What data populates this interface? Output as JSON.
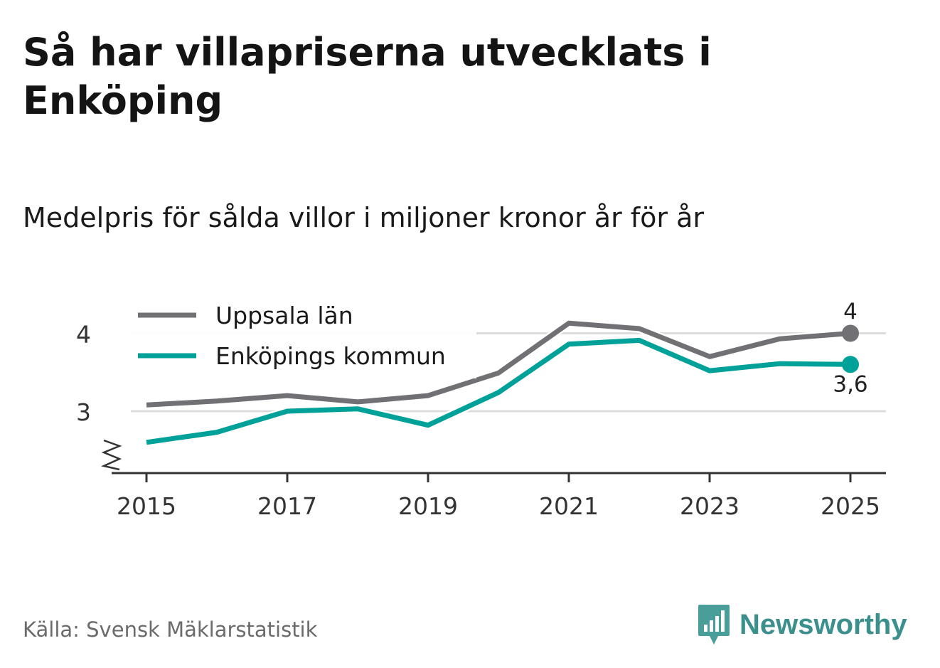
{
  "title": "Så har villapriserna utvecklats i Enköping",
  "subtitle": "Medelpris för sålda villor i miljoner kronor år för år",
  "source": "Källa: Svensk Mäklarstatistik",
  "brand": {
    "name": "Newsworthy",
    "color": "#3b8f8c",
    "icon": "newsworthy-logo-icon"
  },
  "chart_data": {
    "type": "line",
    "x": [
      2015,
      2016,
      2017,
      2018,
      2019,
      2020,
      2021,
      2022,
      2023,
      2024,
      2025
    ],
    "x_ticks": [
      "2015",
      "2017",
      "2019",
      "2021",
      "2023",
      "2025"
    ],
    "y_ticks": [
      "3",
      "4"
    ],
    "ylim": [
      2.2,
      4.4
    ],
    "axis_break": true,
    "legend_position": "top-left",
    "series": [
      {
        "name": "Uppsala län",
        "color": "#717075",
        "values": [
          3.08,
          3.13,
          3.2,
          3.12,
          3.2,
          3.49,
          4.13,
          4.06,
          3.7,
          3.93,
          4.0
        ],
        "end_label": "4"
      },
      {
        "name": "Enköpings kommun",
        "color": "#00a199",
        "values": [
          2.6,
          2.73,
          3.0,
          3.03,
          2.82,
          3.24,
          3.86,
          3.91,
          3.52,
          3.61,
          3.6
        ],
        "end_label": "3,6"
      }
    ]
  }
}
